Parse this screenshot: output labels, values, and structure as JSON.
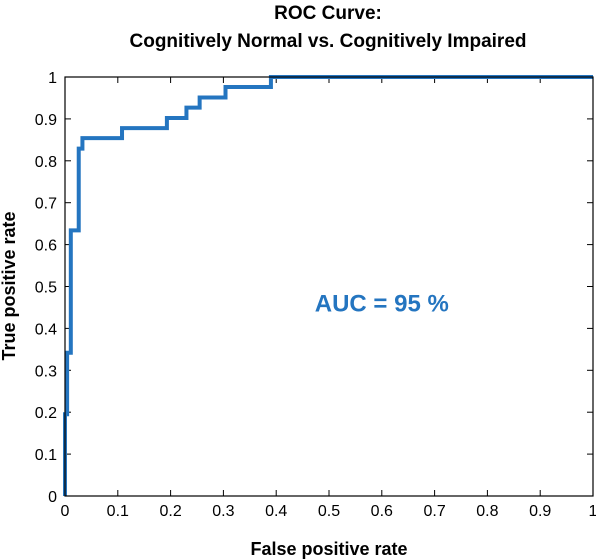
{
  "chart_data": {
    "type": "line",
    "title": "ROC Curve:",
    "subtitle": "Cognitively Normal vs. Cognitively Impaired",
    "xlabel": "False positive rate",
    "ylabel": "True positive rate",
    "xlim": [
      0,
      1
    ],
    "ylim": [
      0,
      1
    ],
    "x_ticks": [
      "0",
      "0.1",
      "0.2",
      "0.3",
      "0.4",
      "0.5",
      "0.6",
      "0.7",
      "0.8",
      "0.9",
      "1"
    ],
    "y_ticks": [
      "0",
      "0.1",
      "0.2",
      "0.3",
      "0.4",
      "0.5",
      "0.6",
      "0.7",
      "0.8",
      "0.9",
      "1"
    ],
    "grid": false,
    "annotation": "AUC = 95 %",
    "annotation_position": {
      "x": 0.6,
      "y": 0.46
    },
    "line_color": "#2475c0",
    "series": [
      {
        "x": [
          0,
          0,
          0.004,
          0.004,
          0.011,
          0.011,
          0.015,
          0.015,
          0.026,
          0.026,
          0.033,
          0.033,
          0.108,
          0.108,
          0.193,
          0.193,
          0.23,
          0.23,
          0.255,
          0.255,
          0.304,
          0.304,
          0.39,
          0.39,
          1
        ],
        "y": [
          0,
          0.195,
          0.195,
          0.342,
          0.342,
          0.634,
          0.634,
          0.634,
          0.634,
          0.829,
          0.829,
          0.854,
          0.854,
          0.878,
          0.878,
          0.902,
          0.902,
          0.927,
          0.927,
          0.951,
          0.951,
          0.976,
          0.976,
          1,
          1
        ]
      }
    ]
  }
}
